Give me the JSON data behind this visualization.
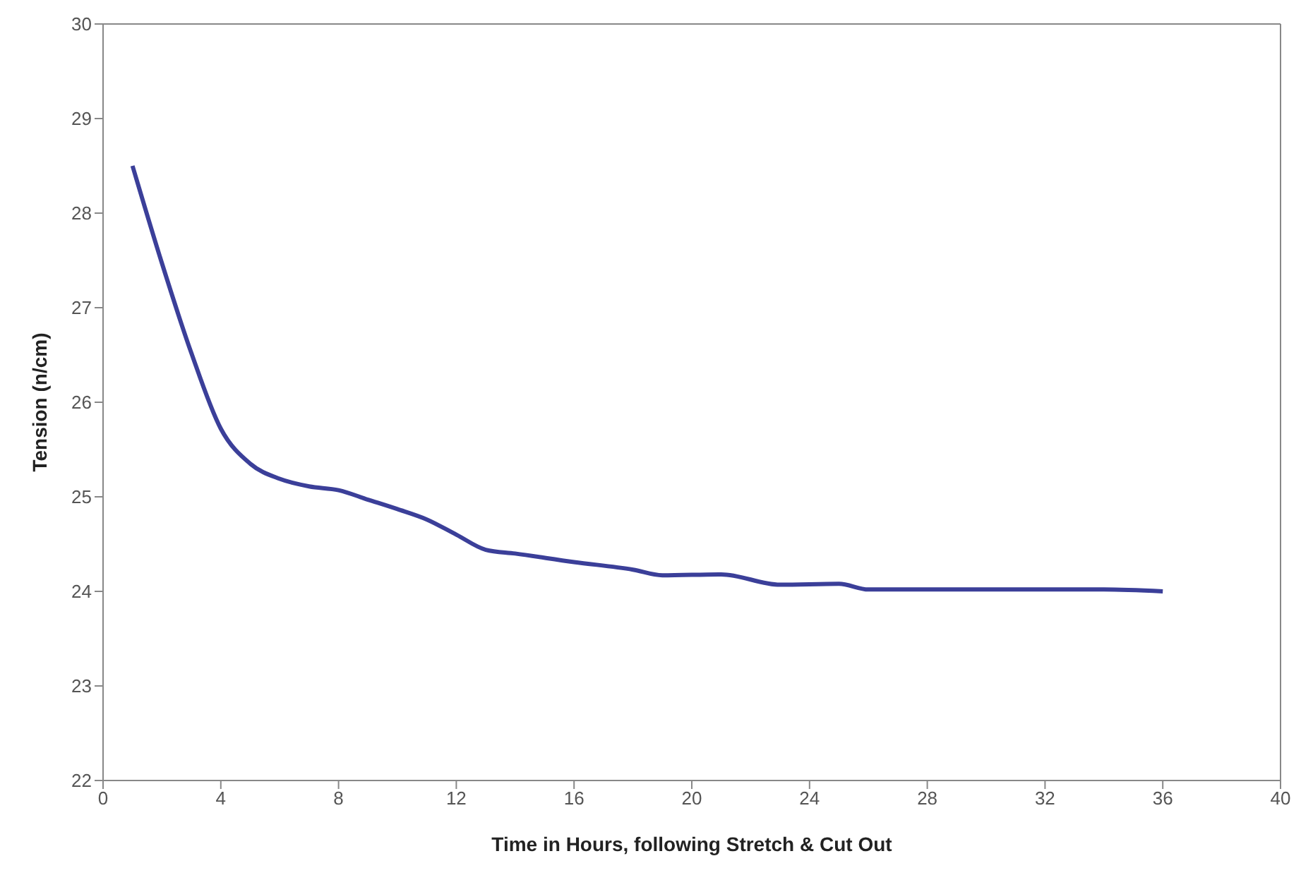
{
  "chart_data": {
    "type": "line",
    "xlabel": "Time in Hours, following Stretch & Cut Out",
    "ylabel": "Tension (n/cm)",
    "x": [
      1,
      2,
      3,
      4,
      5,
      6,
      7,
      8,
      9,
      10,
      11,
      12,
      13,
      14,
      16,
      18,
      19,
      21,
      23,
      25,
      26,
      28,
      34,
      36
    ],
    "series": [
      {
        "color": "#3b3f99",
        "values": [
          28.5,
          27.47,
          26.52,
          25.72,
          25.35,
          25.19,
          25.11,
          25.07,
          24.97,
          24.87,
          24.76,
          24.6,
          24.44,
          24.4,
          24.31,
          24.23,
          24.17,
          24.18,
          24.07,
          24.08,
          24.02,
          24.02,
          24.02,
          24.0
        ]
      }
    ],
    "xlim": [
      0,
      40
    ],
    "xticks": [
      0,
      4,
      8,
      12,
      16,
      20,
      24,
      28,
      32,
      36,
      40
    ],
    "ylim": [
      22,
      30
    ],
    "yticks": [
      22,
      23,
      24,
      25,
      26,
      27,
      28,
      29,
      30
    ],
    "grid": false,
    "legend": false,
    "marker": "none",
    "line_style": "solid"
  }
}
